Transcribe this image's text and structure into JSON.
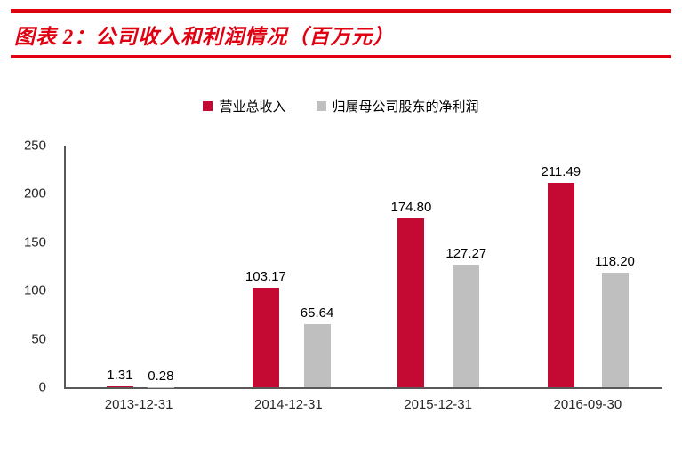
{
  "header": {
    "title": "图表 2：公司收入和利润情况（百万元）"
  },
  "colors": {
    "accent_red": "#e00012",
    "bar_red": "#c40a33",
    "bar_gray": "#bfbfbf",
    "axis": "#595959"
  },
  "chart_data": {
    "type": "bar",
    "title": "公司收入和利润情况（百万元）",
    "categories": [
      "2013-12-31",
      "2014-12-31",
      "2015-12-31",
      "2016-09-30"
    ],
    "series": [
      {
        "name": "营业总收入",
        "color": "#c40a33",
        "values": [
          1.31,
          103.17,
          174.8,
          211.49
        ]
      },
      {
        "name": "归属母公司股东的净利润",
        "color": "#bfbfbf",
        "values": [
          0.28,
          65.64,
          127.27,
          118.2
        ]
      }
    ],
    "xlabel": "",
    "ylabel": "",
    "ylim": [
      0,
      250
    ],
    "yticks": [
      0,
      50,
      100,
      150,
      200,
      250
    ],
    "grid": false,
    "legend_position": "top"
  }
}
